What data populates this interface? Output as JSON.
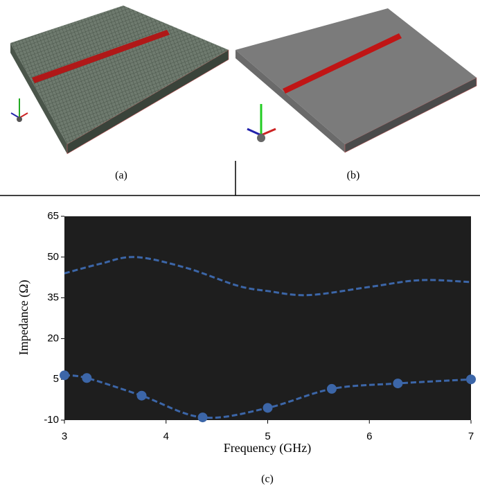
{
  "chart_data": {
    "type": "line",
    "xlabel": "Frequency (GHz)",
    "ylabel": "Impedance (Ω)",
    "xlim": [
      3,
      7
    ],
    "xticks": [
      3,
      4,
      5,
      6,
      7
    ],
    "ylim": [
      -10,
      65
    ],
    "yticks": [
      -10,
      5,
      20,
      35,
      50,
      65
    ],
    "background": "#1e1e1e",
    "series": [
      {
        "color": "#3c66a8",
        "markers": false,
        "x": [
          3,
          3.35,
          3.7,
          4.2,
          4.7,
          5.0,
          5.4,
          6.0,
          6.5,
          7
        ],
        "values": [
          44,
          47.5,
          50,
          46,
          39.5,
          37.5,
          36,
          39,
          41.5,
          40.8
        ]
      },
      {
        "color": "#3c66a8",
        "markers": true,
        "x": [
          3,
          3.22,
          3.76,
          4.36,
          5.0,
          5.63,
          6.28,
          7
        ],
        "values": [
          6.5,
          5.5,
          -1,
          -9,
          -5.5,
          1.5,
          3.5,
          5
        ]
      }
    ]
  },
  "figure": {
    "captions": [
      "(a)",
      "(b)",
      "(c)"
    ]
  }
}
